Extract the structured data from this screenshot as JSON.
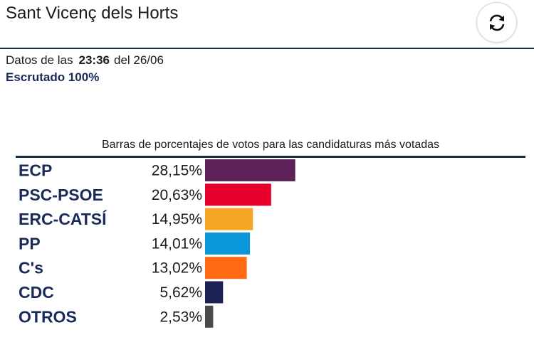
{
  "header": {
    "title": "Sant Vicenç dels Horts",
    "refresh_icon": "refresh-arrows-icon"
  },
  "meta": {
    "prefix": "Datos de las",
    "time": "23:36",
    "date": "del 26/06",
    "scrutiny": "Escrutado 100%"
  },
  "chart_data": {
    "type": "bar",
    "orientation": "horizontal",
    "title": "Barras de porcentajes de votos para las candidaturas más votadas",
    "categories": [
      "ECP",
      "PSC-PSOE",
      "ERC-CATSÍ",
      "PP",
      "C's",
      "CDC",
      "OTROS"
    ],
    "values": [
      28.15,
      20.63,
      14.95,
      14.01,
      13.02,
      5.62,
      2.53
    ],
    "value_labels": [
      "28,15%",
      "20,63%",
      "14,95%",
      "14,01%",
      "13,02%",
      "5,62%",
      "2,53%"
    ],
    "colors": [
      "#5e2259",
      "#e4002b",
      "#f5a623",
      "#0a96d8",
      "#ff6a13",
      "#1c2356",
      "#4b4b4b"
    ],
    "xlim": [
      0,
      100
    ],
    "grid": false,
    "legend": "none"
  }
}
